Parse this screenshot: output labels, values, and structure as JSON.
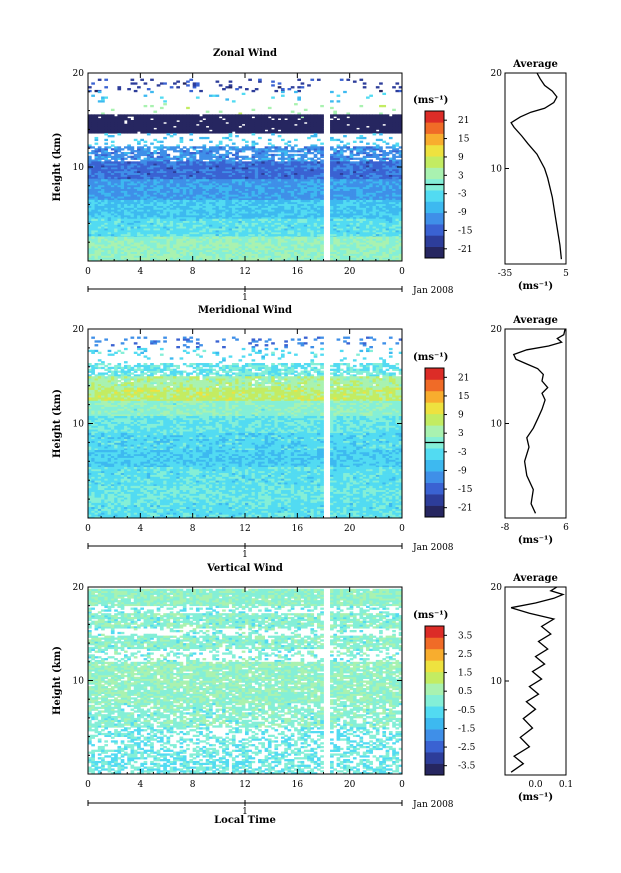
{
  "xaxis": {
    "ticks": [
      "0",
      "4",
      "8",
      "12",
      "16",
      "20",
      "0"
    ],
    "day_label": "1",
    "month_label": "Jan 2008",
    "xlabel": "Local Time"
  },
  "yaxis": {
    "label": "Height (km)",
    "ticks": [
      "10",
      "20"
    ]
  },
  "average_title": "Average",
  "unit_label": "(ms⁻¹)",
  "chart_data": [
    {
      "type": "heatmap",
      "title": "Zonal Wind",
      "ylabel": "Height (km)",
      "xlabel": "",
      "x_range_hours": [
        0,
        24
      ],
      "y_range_km": [
        0,
        20
      ],
      "colorbar": {
        "unit": "(ms⁻¹)",
        "ticks": [
          "21",
          "15",
          "9",
          "3",
          "-3",
          "-9",
          "-15",
          "-21"
        ],
        "range": [
          -24,
          24
        ],
        "zero_line": true
      },
      "bands": [
        {
          "y0": 18.0,
          "y1": 19.3,
          "v": -18,
          "cover": 0.12
        },
        {
          "y0": 16.9,
          "y1": 18.0,
          "v": -6,
          "cover": 0.05
        },
        {
          "y0": 15.2,
          "y1": 16.7,
          "v": 5,
          "cover": 0.06
        },
        {
          "y0": 15.0,
          "y1": 15.6,
          "v": -24,
          "cover": 0.92
        },
        {
          "y0": 13.6,
          "y1": 15.0,
          "v": -28,
          "cover": 0.97
        },
        {
          "y0": 12.2,
          "y1": 13.6,
          "v": -6,
          "cover": 0.15
        },
        {
          "y0": 10.6,
          "y1": 12.2,
          "v": -11,
          "cover": 0.72
        },
        {
          "y0": 8.6,
          "y1": 10.6,
          "v": -14,
          "cover": 1.0
        },
        {
          "y0": 6.5,
          "y1": 8.6,
          "v": -10,
          "cover": 1.0
        },
        {
          "y0": 4.5,
          "y1": 6.5,
          "v": -6,
          "cover": 1.0
        },
        {
          "y0": 2.5,
          "y1": 4.5,
          "v": -3,
          "cover": 1.0
        },
        {
          "y0": 0.0,
          "y1": 2.5,
          "v": 2,
          "cover": 1.0
        }
      ],
      "gap_hours": [
        18.0,
        18.4
      ],
      "profile": {
        "xlim": [
          -35,
          5
        ],
        "xticks": [
          "-35",
          "5"
        ],
        "points": [
          [
            2,
            0.5
          ],
          [
            1,
            2
          ],
          [
            -0.5,
            3.5
          ],
          [
            -2,
            5
          ],
          [
            -4,
            7
          ],
          [
            -7,
            9
          ],
          [
            -9,
            10
          ],
          [
            -14,
            11.5
          ],
          [
            -20,
            12.6
          ],
          [
            -24,
            13.4
          ],
          [
            -29,
            14.3
          ],
          [
            -31,
            14.8
          ],
          [
            -25,
            15.4
          ],
          [
            -18,
            15.9
          ],
          [
            -9,
            16.3
          ],
          [
            -3,
            16.9
          ],
          [
            -1,
            17.5
          ],
          [
            -4,
            18.1
          ],
          [
            -9,
            18.7
          ],
          [
            -12,
            19.4
          ],
          [
            -14,
            20
          ]
        ]
      }
    },
    {
      "type": "heatmap",
      "title": "Meridional Wind",
      "ylabel": "Height (km)",
      "xlabel": "",
      "x_range_hours": [
        0,
        24
      ],
      "y_range_km": [
        0,
        20
      ],
      "colorbar": {
        "unit": "(ms⁻¹)",
        "ticks": [
          "21",
          "15",
          "9",
          "3",
          "-3",
          "-9",
          "-15",
          "-21"
        ],
        "range": [
          -24,
          24
        ],
        "zero_line": true
      },
      "bands": [
        {
          "y0": 18.0,
          "y1": 19.2,
          "v": -12,
          "cover": 0.12
        },
        {
          "y0": 16.4,
          "y1": 18.0,
          "v": -4,
          "cover": 0.12
        },
        {
          "y0": 15.0,
          "y1": 16.4,
          "v": -2,
          "cover": 0.7
        },
        {
          "y0": 13.8,
          "y1": 15.0,
          "v": 4,
          "cover": 0.95
        },
        {
          "y0": 12.4,
          "y1": 13.8,
          "v": 7,
          "cover": 1.0
        },
        {
          "y0": 10.8,
          "y1": 12.4,
          "v": 1,
          "cover": 1.0
        },
        {
          "y0": 9.0,
          "y1": 10.8,
          "v": -2,
          "cover": 1.0
        },
        {
          "y0": 7.2,
          "y1": 9.0,
          "v": -4,
          "cover": 1.0
        },
        {
          "y0": 5.4,
          "y1": 7.2,
          "v": -5,
          "cover": 1.0
        },
        {
          "y0": 3.4,
          "y1": 5.4,
          "v": -3,
          "cover": 1.0
        },
        {
          "y0": 1.6,
          "y1": 3.4,
          "v": -2,
          "cover": 1.0
        },
        {
          "y0": 0.0,
          "y1": 1.6,
          "v": -3,
          "cover": 1.0
        }
      ],
      "gap_hours": [
        18.0,
        18.4
      ],
      "profile": {
        "xlim": [
          -8,
          6
        ],
        "xticks": [
          "-8",
          "6"
        ],
        "points": [
          [
            -1,
            0.5
          ],
          [
            -2,
            1.5
          ],
          [
            -1.5,
            3
          ],
          [
            -3,
            4.5
          ],
          [
            -3.5,
            6
          ],
          [
            -2.5,
            7.5
          ],
          [
            -3,
            8.5
          ],
          [
            -1.5,
            9.5
          ],
          [
            -0.5,
            10.5
          ],
          [
            0.5,
            11.5
          ],
          [
            1.2,
            12.5
          ],
          [
            0.5,
            13.2
          ],
          [
            1.8,
            13.8
          ],
          [
            0.5,
            14.5
          ],
          [
            0.8,
            15.2
          ],
          [
            -0.5,
            15.8
          ],
          [
            -3,
            16.3
          ],
          [
            -5.5,
            16.8
          ],
          [
            -6,
            17.3
          ],
          [
            -3,
            17.8
          ],
          [
            2,
            18.2
          ],
          [
            5,
            18.6
          ],
          [
            4,
            19.0
          ],
          [
            5.5,
            19.4
          ],
          [
            5.8,
            20
          ]
        ]
      }
    },
    {
      "type": "heatmap",
      "title": "Vertical Wind",
      "ylabel": "Height (km)",
      "xlabel": "Local Time",
      "x_range_hours": [
        0,
        24
      ],
      "y_range_km": [
        0,
        20
      ],
      "colorbar": {
        "unit": "(ms⁻¹)",
        "ticks": [
          "3.5",
          "2.5",
          "1.5",
          "0.5",
          "-0.5",
          "-1.5",
          "-2.5",
          "-3.5"
        ],
        "range": [
          -4,
          4
        ],
        "zero_line": false
      },
      "bands": [
        {
          "y0": 18.0,
          "y1": 19.8,
          "v": 0.2,
          "cover": 0.95
        },
        {
          "y0": 17.2,
          "y1": 18.0,
          "v": -0.1,
          "cover": 0.35
        },
        {
          "y0": 15.6,
          "y1": 17.2,
          "v": 0.1,
          "cover": 0.85
        },
        {
          "y0": 14.8,
          "y1": 15.6,
          "v": 0.0,
          "cover": 0.25
        },
        {
          "y0": 13.4,
          "y1": 14.8,
          "v": 0.1,
          "cover": 0.85
        },
        {
          "y0": 12.0,
          "y1": 13.4,
          "v": 0.0,
          "cover": 0.35
        },
        {
          "y0": 7.6,
          "y1": 12.0,
          "v": 0.3,
          "cover": 0.9
        },
        {
          "y0": 5.0,
          "y1": 7.6,
          "v": 0.1,
          "cover": 0.7
        },
        {
          "y0": 2.6,
          "y1": 5.0,
          "v": -0.2,
          "cover": 0.45
        },
        {
          "y0": 0.0,
          "y1": 2.6,
          "v": -0.3,
          "cover": 0.6
        }
      ],
      "gap_hours": [
        18.0,
        18.4
      ],
      "profile": {
        "xlim": [
          -0.1,
          0.1
        ],
        "xticks": [
          "0.0",
          "0.1"
        ],
        "points": [
          [
            -0.08,
            0.3
          ],
          [
            -0.04,
            1.2
          ],
          [
            -0.07,
            2.0
          ],
          [
            -0.02,
            3.0
          ],
          [
            -0.05,
            4.0
          ],
          [
            -0.01,
            5.0
          ],
          [
            -0.04,
            6.0
          ],
          [
            0.0,
            7.0
          ],
          [
            -0.03,
            7.8
          ],
          [
            0.01,
            8.6
          ],
          [
            -0.02,
            9.4
          ],
          [
            0.02,
            10.2
          ],
          [
            -0.01,
            11.0
          ],
          [
            0.03,
            11.8
          ],
          [
            0.0,
            12.6
          ],
          [
            0.04,
            13.4
          ],
          [
            0.01,
            14.2
          ],
          [
            0.05,
            15.0
          ],
          [
            0.02,
            15.8
          ],
          [
            0.06,
            16.6
          ],
          [
            -0.02,
            17.2
          ],
          [
            -0.08,
            17.8
          ],
          [
            0.0,
            18.3
          ],
          [
            0.06,
            18.8
          ],
          [
            0.09,
            19.2
          ],
          [
            0.05,
            19.6
          ],
          [
            0.07,
            20
          ]
        ]
      }
    }
  ]
}
